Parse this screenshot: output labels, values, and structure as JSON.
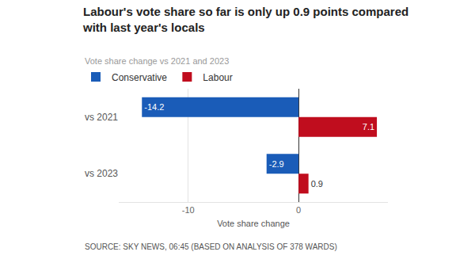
{
  "chart_data": {
    "type": "bar",
    "orientation": "horizontal",
    "title": "Labour's vote share so far is only up 0.9 points compared with last year's locals",
    "subtitle": "Vote share change vs 2021 and 2023",
    "xlabel": "Vote share change",
    "note": "SOURCE: SKY NEWS, 06:45 (BASED ON ANALYSIS OF 378 WARDS)",
    "categories": [
      "vs 2021",
      "vs 2023"
    ],
    "series": [
      {
        "name": "Conservative",
        "color": "#1a5cb8",
        "values": [
          -14.2,
          -2.9
        ]
      },
      {
        "name": "Labour",
        "color": "#c00d1e",
        "values": [
          7.1,
          0.9
        ]
      }
    ],
    "xlim": [
      -16.3,
      8.1
    ],
    "xticks": [
      -10,
      0
    ],
    "grid": true,
    "legend": "top left",
    "data_labels": true
  }
}
